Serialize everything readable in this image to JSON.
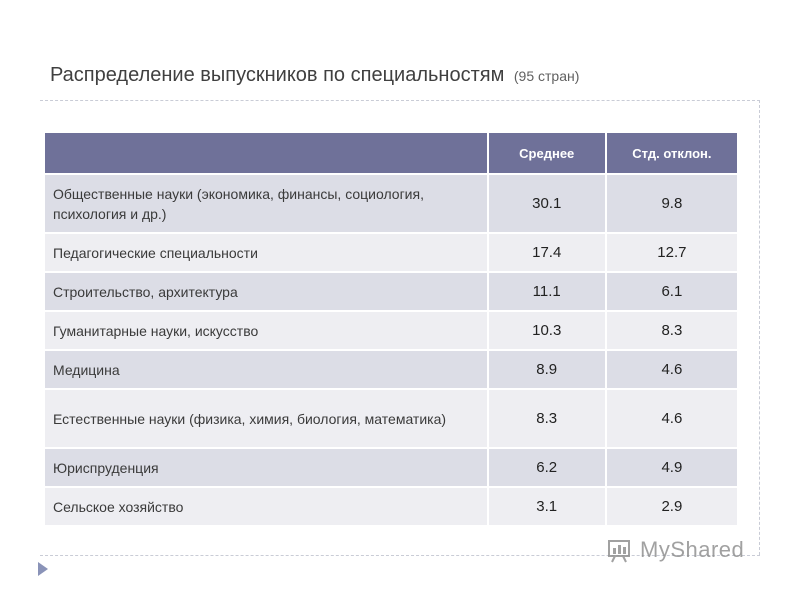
{
  "title": {
    "main": "Распределение выпускников по специальностям",
    "sub": "(95 стран)"
  },
  "table": {
    "headers": [
      "",
      "Среднее",
      "Стд. отклон."
    ],
    "rows": [
      {
        "label": "Общественные науки (экономика, финансы, социология,  психология и др.)",
        "mean": "30.1",
        "std": "9.8"
      },
      {
        "label": "Педагогические специальности",
        "mean": "17.4",
        "std": "12.7"
      },
      {
        "label": "Строительство,  архитектура",
        "mean": "11.1",
        "std": "6.1"
      },
      {
        "label": "Гуманитарные науки, искусство",
        "mean": "10.3",
        "std": "8.3"
      },
      {
        "label": "Медицина",
        "mean": "8.9",
        "std": "4.6"
      },
      {
        "label": "Естественные науки (физика, химия, биология, математика)",
        "mean": "8.3",
        "std": "4.6"
      },
      {
        "label": "Юриспруденция",
        "mean": "6.2",
        "std": "4.9"
      },
      {
        "label": "Сельское хозяйство",
        "mean": "3.1",
        "std": "2.9"
      }
    ]
  },
  "watermark": {
    "text": "MyShared",
    "icon": "myshared-logo-icon"
  },
  "colors": {
    "header_bg": "#6f7199",
    "row_odd": "#dcdde6",
    "row_even": "#eeeef2"
  }
}
